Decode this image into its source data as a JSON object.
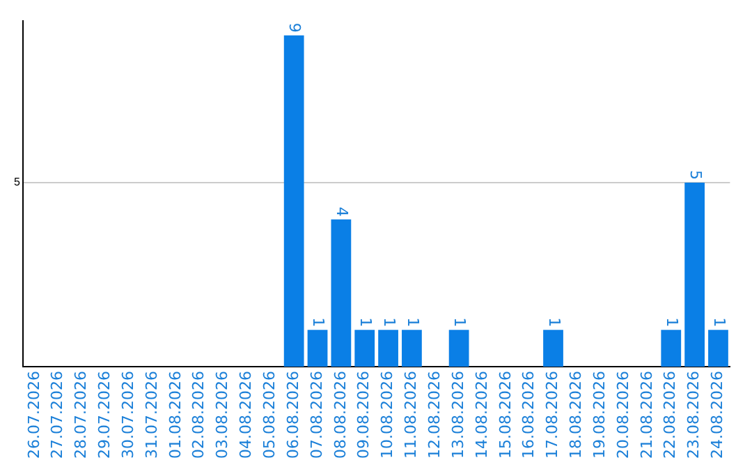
{
  "chart_data": {
    "type": "bar",
    "categories": [
      "26.07.2026",
      "27.07.2026",
      "28.07.2026",
      "29.07.2026",
      "30.07.2026",
      "31.07.2026",
      "01.08.2026",
      "02.08.2026",
      "03.08.2026",
      "04.08.2026",
      "05.08.2026",
      "06.08.2026",
      "07.08.2026",
      "08.08.2026",
      "09.08.2026",
      "10.08.2026",
      "11.08.2026",
      "12.08.2026",
      "13.08.2026",
      "14.08.2026",
      "15.08.2026",
      "16.08.2026",
      "17.08.2026",
      "18.08.2026",
      "19.08.2026",
      "20.08.2026",
      "21.08.2026",
      "22.08.2026",
      "23.08.2026",
      "24.08.2026"
    ],
    "values": [
      0,
      0,
      0,
      0,
      0,
      0,
      0,
      0,
      0,
      0,
      0,
      9,
      1,
      4,
      1,
      1,
      1,
      0,
      1,
      0,
      0,
      0,
      1,
      0,
      0,
      0,
      0,
      1,
      5,
      1
    ],
    "value_labels": [
      null,
      null,
      null,
      null,
      null,
      null,
      null,
      null,
      null,
      null,
      null,
      "9",
      "1",
      "4",
      "1",
      "1",
      "1",
      null,
      "1",
      null,
      null,
      null,
      "1",
      null,
      null,
      null,
      null,
      "1",
      "5",
      "1"
    ],
    "color": "#0a7fe6",
    "ylim": [
      0,
      9.4
    ],
    "yticks": [
      5
    ],
    "grid": "y",
    "legend": false
  }
}
